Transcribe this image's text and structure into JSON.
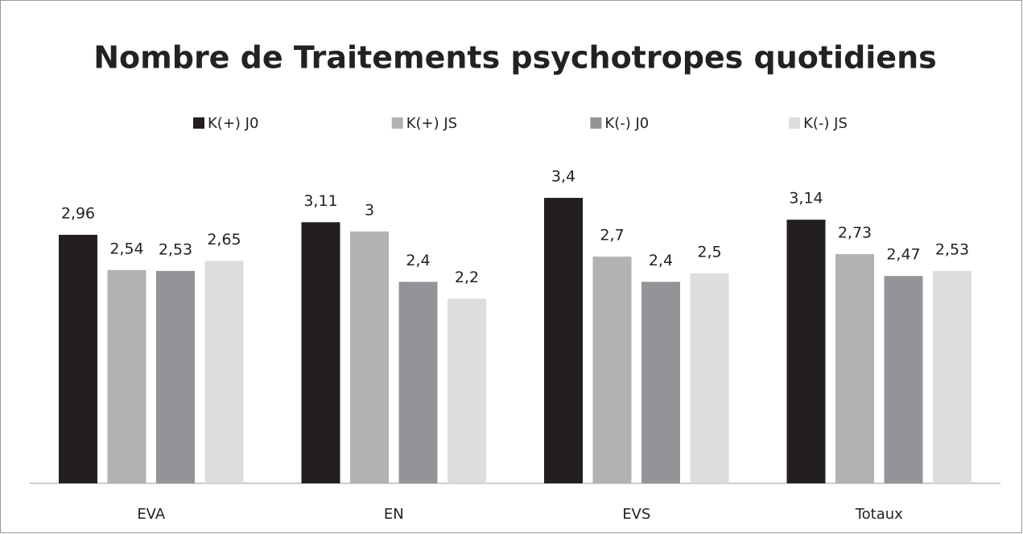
{
  "chart_data": {
    "type": "bar",
    "title": "Nombre de Traitements psychotropes quotidiens",
    "categories": [
      "EVA",
      "EN",
      "EVS",
      "Totaux"
    ],
    "series": [
      {
        "name": "K(+) J0",
        "color": "#231f20",
        "values": [
          2.96,
          3.11,
          3.4,
          3.14
        ],
        "value_labels": [
          "2,96",
          "3,11",
          "3,4",
          "3,14"
        ]
      },
      {
        "name": "K(+) JS",
        "color": "#b1b2b4",
        "values": [
          2.54,
          3,
          2.7,
          2.73
        ],
        "value_labels": [
          "2,54",
          "3",
          "2,7",
          "2,73"
        ]
      },
      {
        "name": "K(-) J0",
        "color": "#929497",
        "values": [
          2.53,
          2.4,
          2.4,
          2.47
        ],
        "value_labels": [
          "2,53",
          "2,4",
          "2,4",
          "2,47"
        ]
      },
      {
        "name": "K(-) JS",
        "color": "#dcdddf",
        "values": [
          2.65,
          2.2,
          2.5,
          2.53
        ],
        "value_labels": [
          "2,65",
          "2,2",
          "2,5",
          "2,53"
        ]
      }
    ],
    "legend": "top"
  }
}
